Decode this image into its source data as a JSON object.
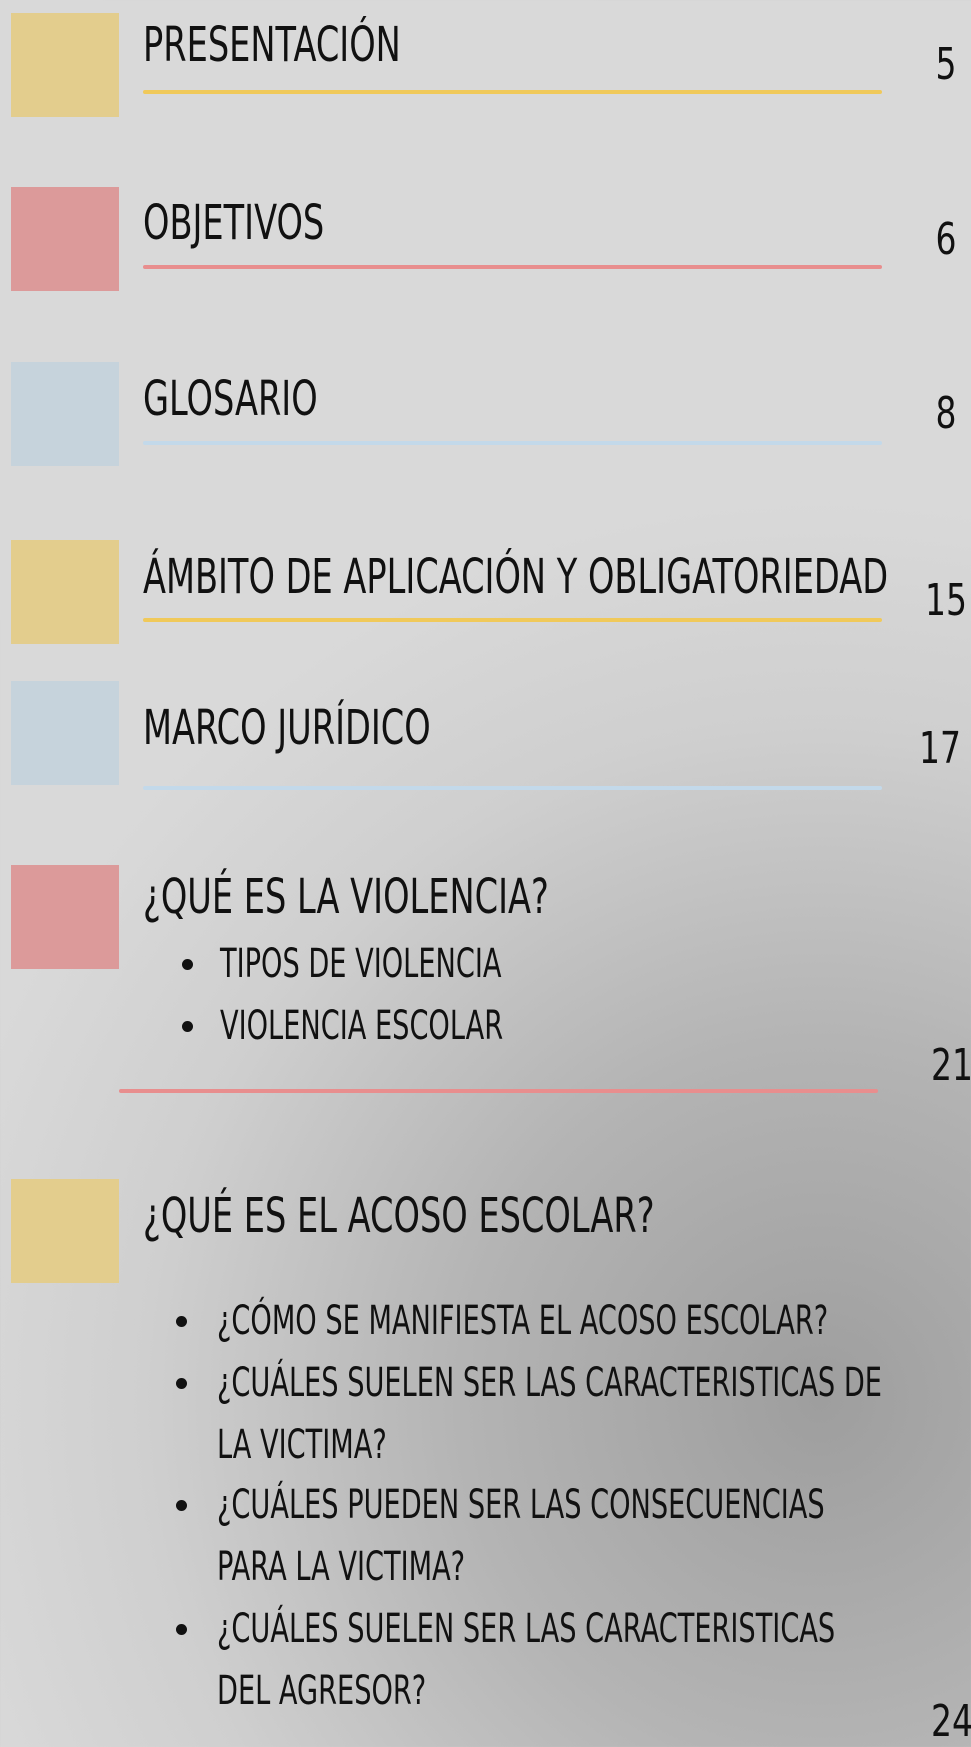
{
  "entries": [
    {
      "title": "PRESENTACIÓN",
      "page": 5
    },
    {
      "title": "OBJETIVOS",
      "page": 6
    },
    {
      "title": "GLOSARIO",
      "page": 8
    },
    {
      "title": "ÁMBITO DE APLICACIÓN Y OBLIGATORIEDAD",
      "page": 15
    },
    {
      "title": "MARCO JURÍDICO",
      "page": 17
    },
    {
      "title": "¿QUÉ ES LA VIOLENCIA?",
      "page": 21,
      "subitems": [
        "TIPOS DE VIOLENCIA",
        "VIOLENCIA ESCOLAR"
      ]
    },
    {
      "title": "¿QUÉ ES EL ACOSO ESCOLAR?",
      "page": 24,
      "subitems": [
        "¿CÓMO SE MANIFIESTA EL ACOSO ESCOLAR?",
        "¿CUÁLES SUELEN SER LAS CARACTERISTICAS DE LA VICTIMA?",
        "¿CUÁLES PUEDEN SER LAS CONSECUENCIAS PARA LA VICTIMA?",
        "¿CUÁLES SUELEN SER LAS CARACTERISTICAS DEL AGRESOR?"
      ]
    }
  ]
}
